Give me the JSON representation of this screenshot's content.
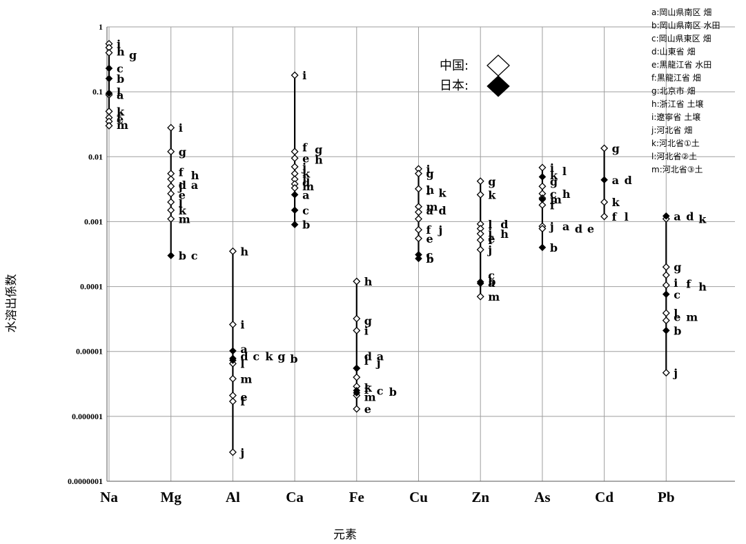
{
  "chart_data": {
    "type": "scatter",
    "title": "",
    "xlabel": "元素",
    "ylabel": "水溶出係数",
    "yscale": "log",
    "ylim": [
      1e-07,
      1
    ],
    "grid": true,
    "categories": [
      "Na",
      "Mg",
      "Al",
      "Ca",
      "Fe",
      "Cu",
      "Zn",
      "As",
      "Cd",
      "Pb"
    ],
    "y_tick_labels": [
      "1",
      "0.1",
      "0.01",
      "0.001",
      "0.0001",
      "0.00001",
      "0.000001",
      "0.0000001"
    ],
    "legend": {
      "placement": "top-right",
      "entries": [
        {
          "label": "中国:",
          "marker": "open-diamond"
        },
        {
          "label": "日本:",
          "marker": "filled-diamond"
        }
      ]
    },
    "sample_key": [
      "a:岡山県南区 畑",
      "b:岡山県南区 水田",
      "c:岡山県東区 畑",
      "d:山東省 畑",
      "e:黒龍江省 水田",
      "f:黒龍江省 畑",
      "g:北京市 畑",
      "h:浙江省 土壌",
      "i:遼寧省 土壌",
      "j:河北省 畑",
      "k:河北省①土",
      "l:河北省②土",
      "m:河北省③土"
    ],
    "series": [
      {
        "name": "中国:",
        "marker": "open-diamond",
        "points": [
          {
            "x": "Na",
            "y": 0.55
          },
          {
            "x": "Na",
            "y": 0.48
          },
          {
            "x": "Na",
            "y": 0.4
          },
          {
            "x": "Na",
            "y": 0.09
          },
          {
            "x": "Na",
            "y": 0.05
          },
          {
            "x": "Na",
            "y": 0.04
          },
          {
            "x": "Na",
            "y": 0.035
          },
          {
            "x": "Na",
            "y": 0.03
          },
          {
            "x": "Mg",
            "y": 0.028
          },
          {
            "x": "Mg",
            "y": 0.012
          },
          {
            "x": "Mg",
            "y": 0.0055
          },
          {
            "x": "Mg",
            "y": 0.0045
          },
          {
            "x": "Mg",
            "y": 0.0035
          },
          {
            "x": "Mg",
            "y": 0.0027
          },
          {
            "x": "Mg",
            "y": 0.002
          },
          {
            "x": "Mg",
            "y": 0.0015
          },
          {
            "x": "Mg",
            "y": 0.0011
          },
          {
            "x": "Al",
            "y": 0.00035
          },
          {
            "x": "Al",
            "y": 2.6e-05
          },
          {
            "x": "Al",
            "y": 6.5e-06
          },
          {
            "x": "Al",
            "y": 3.8e-06
          },
          {
            "x": "Al",
            "y": 2.1e-06
          },
          {
            "x": "Al",
            "y": 1.7e-06
          },
          {
            "x": "Al",
            "y": 2.8e-07
          },
          {
            "x": "Ca",
            "y": 0.18
          },
          {
            "x": "Ca",
            "y": 0.012
          },
          {
            "x": "Ca",
            "y": 0.0095
          },
          {
            "x": "Ca",
            "y": 0.007
          },
          {
            "x": "Ca",
            "y": 0.0055
          },
          {
            "x": "Ca",
            "y": 0.0045
          },
          {
            "x": "Ca",
            "y": 0.0038
          },
          {
            "x": "Ca",
            "y": 0.0033
          },
          {
            "x": "Fe",
            "y": 0.00012
          },
          {
            "x": "Fe",
            "y": 3.2e-05
          },
          {
            "x": "Fe",
            "y": 2.1e-05
          },
          {
            "x": "Fe",
            "y": 5.5e-06
          },
          {
            "x": "Fe",
            "y": 4e-06
          },
          {
            "x": "Fe",
            "y": 2.9e-06
          },
          {
            "x": "Fe",
            "y": 2.1e-06
          },
          {
            "x": "Fe",
            "y": 1.3e-06
          },
          {
            "x": "Cu",
            "y": 0.0065
          },
          {
            "x": "Cu",
            "y": 0.0055
          },
          {
            "x": "Cu",
            "y": 0.0032
          },
          {
            "x": "Cu",
            "y": 0.0017
          },
          {
            "x": "Cu",
            "y": 0.0014
          },
          {
            "x": "Cu",
            "y": 0.0011
          },
          {
            "x": "Cu",
            "y": 0.00075
          },
          {
            "x": "Cu",
            "y": 0.00055
          },
          {
            "x": "Zn",
            "y": 0.0042
          },
          {
            "x": "Zn",
            "y": 0.0026
          },
          {
            "x": "Zn",
            "y": 0.00092
          },
          {
            "x": "Zn",
            "y": 0.00078
          },
          {
            "x": "Zn",
            "y": 0.00065
          },
          {
            "x": "Zn",
            "y": 0.00052
          },
          {
            "x": "Zn",
            "y": 0.00037
          },
          {
            "x": "Zn",
            "y": 7e-05
          },
          {
            "x": "As",
            "y": 0.0068
          },
          {
            "x": "As",
            "y": 0.0035
          },
          {
            "x": "As",
            "y": 0.0027
          },
          {
            "x": "As",
            "y": 0.0023
          },
          {
            "x": "As",
            "y": 0.0018
          },
          {
            "x": "As",
            "y": 0.00085
          },
          {
            "x": "As",
            "y": 0.00078
          },
          {
            "x": "Cd",
            "y": 0.0135
          },
          {
            "x": "Cd",
            "y": 0.002
          },
          {
            "x": "Cd",
            "y": 0.0012
          },
          {
            "x": "Pb",
            "y": 0.0011
          },
          {
            "x": "Pb",
            "y": 0.0002
          },
          {
            "x": "Pb",
            "y": 0.00015
          },
          {
            "x": "Pb",
            "y": 0.000105
          },
          {
            "x": "Pb",
            "y": 3.9e-05
          },
          {
            "x": "Pb",
            "y": 3e-05
          },
          {
            "x": "Pb",
            "y": 4.7e-06
          }
        ]
      },
      {
        "name": "日本:",
        "marker": "filled-diamond",
        "points": [
          {
            "x": "Na",
            "y": 0.23
          },
          {
            "x": "Na",
            "y": 0.16
          },
          {
            "x": "Na",
            "y": 0.095
          },
          {
            "x": "Mg",
            "y": 0.0003
          },
          {
            "x": "Al",
            "y": 1.02e-05
          },
          {
            "x": "Al",
            "y": 7.8e-06
          },
          {
            "x": "Al",
            "y": 7.3e-06
          },
          {
            "x": "Ca",
            "y": 0.0026
          },
          {
            "x": "Ca",
            "y": 0.0015
          },
          {
            "x": "Ca",
            "y": 0.0009
          },
          {
            "x": "Fe",
            "y": 5.5e-06
          },
          {
            "x": "Fe",
            "y": 2.5e-06
          },
          {
            "x": "Fe",
            "y": 2.3e-06
          },
          {
            "x": "Cu",
            "y": 0.00031
          },
          {
            "x": "Cu",
            "y": 0.00027
          },
          {
            "x": "Zn",
            "y": 0.000118
          },
          {
            "x": "Zn",
            "y": 0.000112
          },
          {
            "x": "As",
            "y": 0.0049
          },
          {
            "x": "As",
            "y": 0.0022
          },
          {
            "x": "As",
            "y": 0.0004
          },
          {
            "x": "Cd",
            "y": 0.0044
          },
          {
            "x": "Pb",
            "y": 0.00122
          },
          {
            "x": "Pb",
            "y": 7.6e-05
          },
          {
            "x": "Pb",
            "y": 2.1e-05
          }
        ]
      }
    ],
    "point_labels": [
      {
        "x": "Na",
        "y": 0.55,
        "text": "i"
      },
      {
        "x": "Na",
        "y": 0.42,
        "text": "h"
      },
      {
        "x": "Na",
        "y": 0.37,
        "text": "g"
      },
      {
        "x": "Na",
        "y": 0.23,
        "text": "c"
      },
      {
        "x": "Na",
        "y": 0.16,
        "text": "b"
      },
      {
        "x": "Na",
        "y": 0.1,
        "text": "l"
      },
      {
        "x": "Na",
        "y": 0.09,
        "text": "a"
      },
      {
        "x": "Na",
        "y": 0.05,
        "text": "k"
      },
      {
        "x": "Na",
        "y": 0.04,
        "text": "f"
      },
      {
        "x": "Na",
        "y": 0.038,
        "text": "e"
      },
      {
        "x": "Na",
        "y": 0.031,
        "text": "m"
      },
      {
        "x": "Mg",
        "y": 0.028,
        "text": "i"
      },
      {
        "x": "Mg",
        "y": 0.012,
        "text": "g"
      },
      {
        "x": "Mg",
        "y": 0.0058,
        "text": "f"
      },
      {
        "x": "Mg",
        "y": 0.0052,
        "text": "h"
      },
      {
        "x": "Mg",
        "y": 0.0037,
        "text": "d"
      },
      {
        "x": "Mg",
        "y": 0.0037,
        "text": "a"
      },
      {
        "x": "Mg",
        "y": 0.0035,
        "text": "j"
      },
      {
        "x": "Mg",
        "y": 0.0026,
        "text": "e"
      },
      {
        "x": "Mg",
        "y": 0.0019,
        "text": "l"
      },
      {
        "x": "Mg",
        "y": 0.0015,
        "text": "k"
      },
      {
        "x": "Mg",
        "y": 0.0011,
        "text": "m"
      },
      {
        "x": "Mg",
        "y": 0.0003,
        "text": "b"
      },
      {
        "x": "Mg",
        "y": 0.0003,
        "text": "c"
      },
      {
        "x": "Al",
        "y": 0.00035,
        "text": "h"
      },
      {
        "x": "Al",
        "y": 2.6e-05,
        "text": "i"
      },
      {
        "x": "Al",
        "y": 1.1e-05,
        "text": "a"
      },
      {
        "x": "Al",
        "y": 8.5e-06,
        "text": "d"
      },
      {
        "x": "Al",
        "y": 8.5e-06,
        "text": "c"
      },
      {
        "x": "Al",
        "y": 8.5e-06,
        "text": "k"
      },
      {
        "x": "Al",
        "y": 8.5e-06,
        "text": "g"
      },
      {
        "x": "Al",
        "y": 7.8e-06,
        "text": "b"
      },
      {
        "x": "Al",
        "y": 6.5e-06,
        "text": "l"
      },
      {
        "x": "Al",
        "y": 3.8e-06,
        "text": "m"
      },
      {
        "x": "Al",
        "y": 2e-06,
        "text": "e"
      },
      {
        "x": "Al",
        "y": 1.7e-06,
        "text": "f"
      },
      {
        "x": "Al",
        "y": 2.8e-07,
        "text": "j"
      },
      {
        "x": "Ca",
        "y": 0.18,
        "text": "i"
      },
      {
        "x": "Ca",
        "y": 0.014,
        "text": "f"
      },
      {
        "x": "Ca",
        "y": 0.013,
        "text": "g"
      },
      {
        "x": "Ca",
        "y": 0.0095,
        "text": "e"
      },
      {
        "x": "Ca",
        "y": 0.009,
        "text": "h"
      },
      {
        "x": "Ca",
        "y": 0.007,
        "text": "j"
      },
      {
        "x": "Ca",
        "y": 0.0055,
        "text": "k"
      },
      {
        "x": "Ca",
        "y": 0.0045,
        "text": "l"
      },
      {
        "x": "Ca",
        "y": 0.004,
        "text": "d"
      },
      {
        "x": "Ca",
        "y": 0.0035,
        "text": "m"
      },
      {
        "x": "Ca",
        "y": 0.0026,
        "text": "a"
      },
      {
        "x": "Ca",
        "y": 0.0015,
        "text": "c"
      },
      {
        "x": "Ca",
        "y": 0.0009,
        "text": "b"
      },
      {
        "x": "Fe",
        "y": 0.00012,
        "text": "h"
      },
      {
        "x": "Fe",
        "y": 3e-05,
        "text": "g"
      },
      {
        "x": "Fe",
        "y": 2.1e-05,
        "text": "i"
      },
      {
        "x": "Fe",
        "y": 8.5e-06,
        "text": "d"
      },
      {
        "x": "Fe",
        "y": 8.5e-06,
        "text": "a"
      },
      {
        "x": "Fe",
        "y": 7.2e-06,
        "text": "l"
      },
      {
        "x": "Fe",
        "y": 6.8e-06,
        "text": "j"
      },
      {
        "x": "Fe",
        "y": 2.8e-06,
        "text": "k"
      },
      {
        "x": "Fe",
        "y": 2.6e-06,
        "text": "f"
      },
      {
        "x": "Fe",
        "y": 2.5e-06,
        "text": "c"
      },
      {
        "x": "Fe",
        "y": 2.4e-06,
        "text": "b"
      },
      {
        "x": "Fe",
        "y": 2e-06,
        "text": "m"
      },
      {
        "x": "Fe",
        "y": 1.3e-06,
        "text": "e"
      },
      {
        "x": "Cu",
        "y": 0.0065,
        "text": "i"
      },
      {
        "x": "Cu",
        "y": 0.0055,
        "text": "g"
      },
      {
        "x": "Cu",
        "y": 0.0031,
        "text": "h"
      },
      {
        "x": "Cu",
        "y": 0.003,
        "text": "l"
      },
      {
        "x": "Cu",
        "y": 0.0028,
        "text": "k"
      },
      {
        "x": "Cu",
        "y": 0.0017,
        "text": "m"
      },
      {
        "x": "Cu",
        "y": 0.0015,
        "text": "a"
      },
      {
        "x": "Cu",
        "y": 0.0015,
        "text": "d"
      },
      {
        "x": "Cu",
        "y": 0.00075,
        "text": "f"
      },
      {
        "x": "Cu",
        "y": 0.00075,
        "text": "j"
      },
      {
        "x": "Cu",
        "y": 0.00055,
        "text": "e"
      },
      {
        "x": "Cu",
        "y": 0.00031,
        "text": "c"
      },
      {
        "x": "Cu",
        "y": 0.00027,
        "text": "b"
      },
      {
        "x": "Zn",
        "y": 0.0042,
        "text": "g"
      },
      {
        "x": "Zn",
        "y": 0.0026,
        "text": "k"
      },
      {
        "x": "Zn",
        "y": 0.00092,
        "text": "l"
      },
      {
        "x": "Zn",
        "y": 0.00092,
        "text": "d"
      },
      {
        "x": "Zn",
        "y": 0.00068,
        "text": "i"
      },
      {
        "x": "Zn",
        "y": 0.00065,
        "text": "h"
      },
      {
        "x": "Zn",
        "y": 0.00055,
        "text": "e"
      },
      {
        "x": "Zn",
        "y": 0.00052,
        "text": "f"
      },
      {
        "x": "Zn",
        "y": 0.00037,
        "text": "j"
      },
      {
        "x": "Zn",
        "y": 0.00015,
        "text": "c"
      },
      {
        "x": "Zn",
        "y": 0.00012,
        "text": "b"
      },
      {
        "x": "Zn",
        "y": 0.000115,
        "text": "a"
      },
      {
        "x": "Zn",
        "y": 7e-05,
        "text": "m"
      },
      {
        "x": "As",
        "y": 0.0068,
        "text": "i"
      },
      {
        "x": "As",
        "y": 0.006,
        "text": "l"
      },
      {
        "x": "As",
        "y": 0.0052,
        "text": "k"
      },
      {
        "x": "As",
        "y": 0.0042,
        "text": "g"
      },
      {
        "x": "As",
        "y": 0.0027,
        "text": "c"
      },
      {
        "x": "As",
        "y": 0.0027,
        "text": "h"
      },
      {
        "x": "As",
        "y": 0.0022,
        "text": "m"
      },
      {
        "x": "As",
        "y": 0.0018,
        "text": "f"
      },
      {
        "x": "As",
        "y": 0.00085,
        "text": "j"
      },
      {
        "x": "As",
        "y": 0.00085,
        "text": "a"
      },
      {
        "x": "As",
        "y": 0.00078,
        "text": "d"
      },
      {
        "x": "As",
        "y": 0.00078,
        "text": "e"
      },
      {
        "x": "As",
        "y": 0.0004,
        "text": "b"
      },
      {
        "x": "Cd",
        "y": 0.0135,
        "text": "g"
      },
      {
        "x": "Cd",
        "y": 0.0044,
        "text": "a"
      },
      {
        "x": "Cd",
        "y": 0.0044,
        "text": "d"
      },
      {
        "x": "Cd",
        "y": 0.002,
        "text": "k"
      },
      {
        "x": "Cd",
        "y": 0.0012,
        "text": "f"
      },
      {
        "x": "Cd",
        "y": 0.0012,
        "text": "l"
      },
      {
        "x": "Pb",
        "y": 0.00122,
        "text": "a"
      },
      {
        "x": "Pb",
        "y": 0.00122,
        "text": "d"
      },
      {
        "x": "Pb",
        "y": 0.0011,
        "text": "k"
      },
      {
        "x": "Pb",
        "y": 0.0002,
        "text": "g"
      },
      {
        "x": "Pb",
        "y": 0.000115,
        "text": "i"
      },
      {
        "x": "Pb",
        "y": 0.00011,
        "text": "f"
      },
      {
        "x": "Pb",
        "y": 0.0001,
        "text": "h"
      },
      {
        "x": "Pb",
        "y": 7.6e-05,
        "text": "c"
      },
      {
        "x": "Pb",
        "y": 3.9e-05,
        "text": "l"
      },
      {
        "x": "Pb",
        "y": 3.4e-05,
        "text": "e"
      },
      {
        "x": "Pb",
        "y": 3.4e-05,
        "text": "m"
      },
      {
        "x": "Pb",
        "y": 2.1e-05,
        "text": "b"
      },
      {
        "x": "Pb",
        "y": 4.7e-06,
        "text": "j"
      }
    ]
  }
}
